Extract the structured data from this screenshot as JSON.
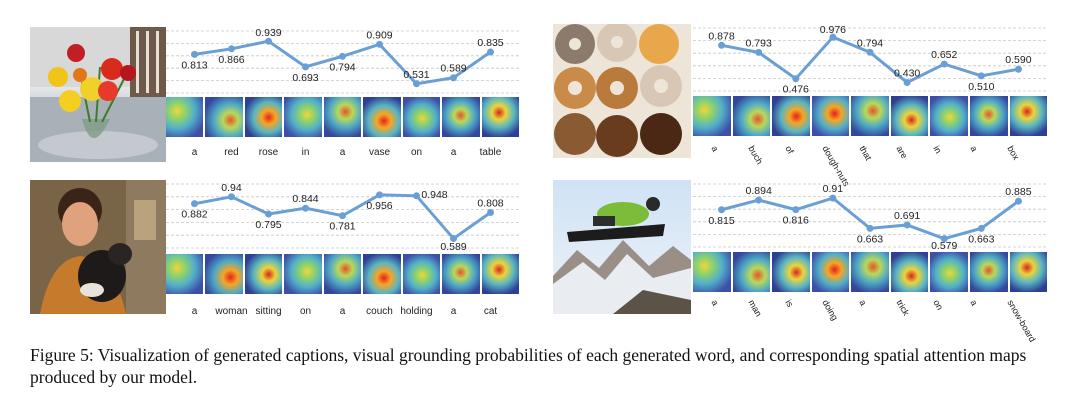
{
  "caption": "Figure 5: Visualization of generated captions, visual grounding probabilities of each generated word, and corresponding spatial attention maps produced by our model.",
  "colors": {
    "line": "#6a9fd6",
    "grid": "#c8c8c8"
  },
  "panels": [
    {
      "photo": "flowers-in-vase",
      "chart_data": {
        "type": "line",
        "categories": [
          "a",
          "red",
          "rose",
          "in",
          "a",
          "vase",
          "on",
          "a",
          "table"
        ],
        "values": [
          0.813,
          0.866,
          0.939,
          0.693,
          0.794,
          0.909,
          0.531,
          0.589,
          0.835
        ],
        "labels": [
          "0.813",
          "0.866",
          "0.939",
          "0.693",
          "0.794",
          "0.909",
          "0.531",
          "0.589",
          "0.835"
        ],
        "label_pos": [
          "below",
          "below",
          "above",
          "below",
          "below",
          "above",
          "above",
          "above",
          "above"
        ],
        "ylim": [
          0.5,
          0.96
        ]
      }
    },
    {
      "photo": "donuts",
      "chart_data": {
        "type": "line",
        "categories": [
          "a",
          "buch",
          "of",
          "dough-nuts",
          "that",
          "are",
          "in",
          "a",
          "box"
        ],
        "values": [
          0.878,
          0.793,
          0.476,
          0.976,
          0.794,
          0.43,
          0.652,
          0.51,
          0.59
        ],
        "labels": [
          "0.878",
          "0.793",
          "0.476",
          "0.976",
          "0.794",
          "0.430",
          "0.652",
          "0.510",
          "0.590"
        ],
        "label_pos": [
          "above",
          "above",
          "below",
          "above",
          "above",
          "above",
          "above",
          "below",
          "above"
        ],
        "ylim": [
          0.4,
          0.99
        ]
      }
    },
    {
      "photo": "woman-with-cat",
      "chart_data": {
        "type": "line",
        "categories": [
          "a",
          "woman",
          "sitting",
          "on",
          "a",
          "couch",
          "holding",
          "a",
          "cat"
        ],
        "values": [
          0.882,
          0.94,
          0.795,
          0.844,
          0.781,
          0.956,
          0.948,
          0.589,
          0.808
        ],
        "labels": [
          "0.882",
          "0.94",
          "0.795",
          "0.844",
          "0.781",
          "0.956",
          "0.948",
          "0.589",
          "0.808"
        ],
        "label_pos": [
          "below",
          "above",
          "below",
          "above",
          "below",
          "below",
          "right",
          "below",
          "above"
        ],
        "ylim": [
          0.56,
          0.98
        ]
      }
    },
    {
      "photo": "snowboarder",
      "chart_data": {
        "type": "line",
        "categories": [
          "a",
          "man",
          "is",
          "doing",
          "a",
          "trick",
          "on",
          "a",
          "snow-board"
        ],
        "values": [
          0.815,
          0.894,
          0.816,
          0.91,
          0.663,
          0.691,
          0.579,
          0.663,
          0.885
        ],
        "labels": [
          "0.815",
          "0.894",
          "0.816",
          "0.91",
          "0.663",
          "0.691",
          "0.579",
          "0.663",
          "0.885"
        ],
        "label_pos": [
          "below",
          "above",
          "below",
          "above",
          "below",
          "above",
          "below",
          "below",
          "above"
        ],
        "ylim": [
          0.56,
          0.96
        ]
      }
    }
  ]
}
